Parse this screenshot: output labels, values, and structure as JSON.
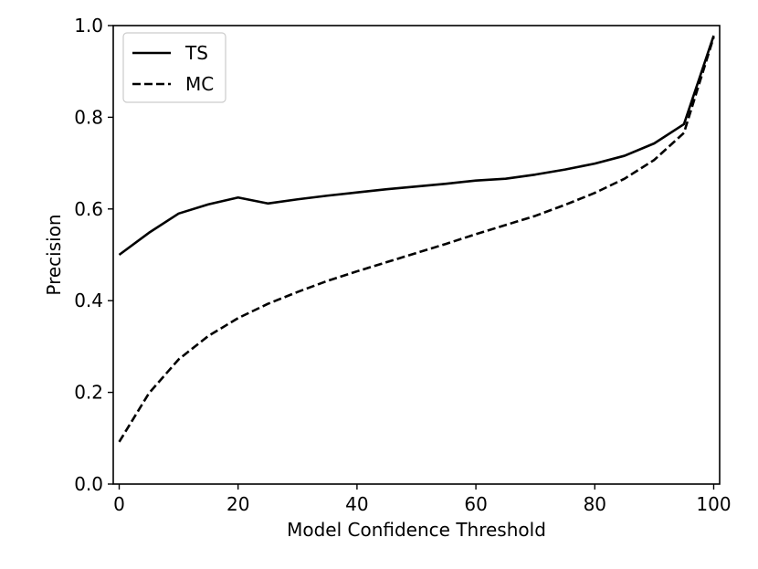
{
  "chart_data": {
    "type": "line",
    "title": "",
    "xlabel": "Model Confidence Threshold",
    "ylabel": "Precision",
    "xlim": [
      -1,
      101
    ],
    "ylim": [
      0.0,
      1.0
    ],
    "xticks": [
      0,
      20,
      40,
      60,
      80,
      100
    ],
    "xtick_labels": [
      "0",
      "20",
      "40",
      "60",
      "80",
      "100"
    ],
    "yticks": [
      0.0,
      0.2,
      0.4,
      0.6,
      0.8,
      1.0
    ],
    "ytick_labels": [
      "0.0",
      "0.2",
      "0.4",
      "0.6",
      "0.8",
      "1.0"
    ],
    "grid": false,
    "legend_position": "top-left",
    "series": [
      {
        "name": "TS",
        "style": "solid",
        "color": "#000000",
        "x": [
          0,
          5,
          10,
          15,
          20,
          25,
          30,
          35,
          40,
          45,
          50,
          55,
          60,
          65,
          70,
          75,
          80,
          85,
          90,
          95,
          100
        ],
        "y": [
          0.5,
          0.548,
          0.59,
          0.61,
          0.625,
          0.612,
          0.621,
          0.629,
          0.636,
          0.643,
          0.649,
          0.655,
          0.662,
          0.666,
          0.675,
          0.686,
          0.699,
          0.716,
          0.743,
          0.785,
          0.978
        ]
      },
      {
        "name": "MC",
        "style": "dashed",
        "color": "#000000",
        "x": [
          0,
          5,
          10,
          15,
          20,
          25,
          30,
          35,
          40,
          45,
          50,
          55,
          60,
          65,
          70,
          75,
          80,
          85,
          90,
          95,
          100
        ],
        "y": [
          0.092,
          0.198,
          0.272,
          0.323,
          0.362,
          0.393,
          0.419,
          0.443,
          0.464,
          0.484,
          0.504,
          0.524,
          0.545,
          0.565,
          0.585,
          0.609,
          0.635,
          0.666,
          0.707,
          0.766,
          0.975
        ]
      }
    ]
  }
}
